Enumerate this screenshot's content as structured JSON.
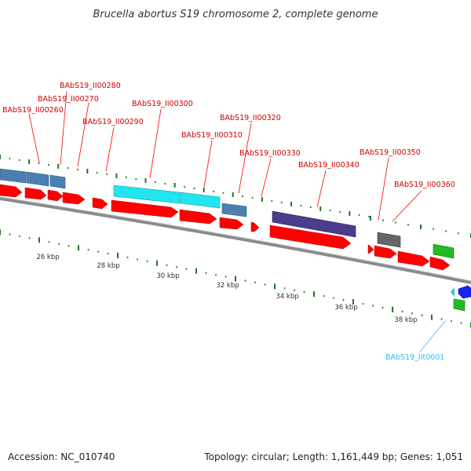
{
  "header": {
    "title": "Brucella abortus S19 chromosome 2, complete genome"
  },
  "footer": {
    "accession": "Accession: NC_010740",
    "summary": "Topology: circular; Length: 1,161,449 bp; Genes: 1,051"
  },
  "colors": {
    "cds_forward": "#ff0000",
    "gene_label": "#cc0000",
    "trna_label": "#33bbee",
    "tick": "#227722",
    "backbone": "#888888",
    "steelblue_block": "#4a80b0",
    "cyan_block": "#22e5f0",
    "purple_block": "#4a3d8c",
    "gray_block": "#666666",
    "green_block": "#22bb22",
    "blue_block": "#1a22ee"
  },
  "scale_labels": [
    "26 kbp",
    "28 kbp",
    "30 kbp",
    "32 kbp",
    "34 kbp",
    "36 kbp",
    "38 kbp"
  ],
  "gene_labels": [
    "BAbS19_II00280",
    "BAbS19_II00270",
    "BAbS19_II00260",
    "BAbS19_II00300",
    "BAbS19_II00290",
    "BAbS19_II00320",
    "BAbS19_II00310",
    "BAbS19_II00330",
    "BAbS19_II00350",
    "BAbS19_II00340",
    "BAbS19_II00360"
  ],
  "trna_label": "BAbS19_IIt0001"
}
